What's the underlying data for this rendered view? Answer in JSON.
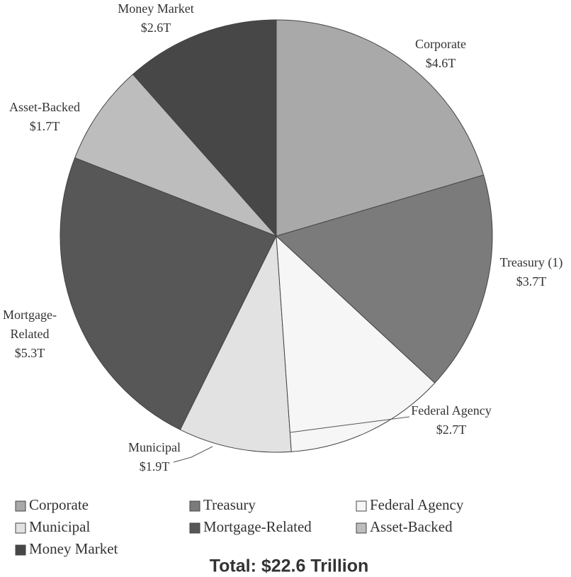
{
  "chart_data": {
    "type": "pie",
    "categories": [
      "Corporate",
      "Treasury",
      "Federal Agency",
      "Municipal",
      "Mortgage-Related",
      "Asset-Backed",
      "Money Market"
    ],
    "labels": [
      [
        "Corporate"
      ],
      [
        "Treasury (1)"
      ],
      [
        "Federal Agency"
      ],
      [
        "Municipal"
      ],
      [
        "Mortgage-",
        "Related"
      ],
      [
        "Asset-Backed"
      ],
      [
        "Money Market"
      ]
    ],
    "values": [
      4.6,
      3.7,
      2.7,
      1.9,
      5.3,
      1.7,
      2.6
    ],
    "value_labels": [
      "$4.6T",
      "$3.7T",
      "$2.7T",
      "$1.9T",
      "$5.3T",
      "$1.7T",
      "$2.6T"
    ],
    "colors": [
      "#a9a9a9",
      "#7b7b7b",
      "#f6f6f6",
      "#e2e2e2",
      "#575757",
      "#bdbdbd",
      "#474747"
    ],
    "annotation": "Total: $22.6 Trillion"
  }
}
